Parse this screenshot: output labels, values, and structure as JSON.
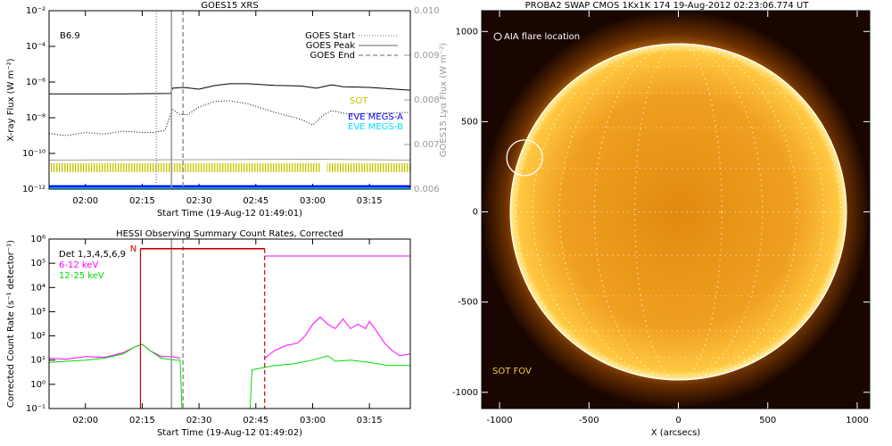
{
  "chart_data": [
    {
      "type": "line",
      "title": "GOES15 XRS",
      "xlabel": "Start Time (19-Aug-12 01:49:01)",
      "ylabel": "X-ray Flux (W m⁻²)",
      "y2label": "GOES15 Lyα Flux (W m⁻²)",
      "xlim": [
        110.4,
        205.8
      ],
      "xticks": [
        {
          "value": 120,
          "label": "02:00"
        },
        {
          "value": 135,
          "label": "02:15"
        },
        {
          "value": 150,
          "label": "02:30"
        },
        {
          "value": 165,
          "label": "02:45"
        },
        {
          "value": 180,
          "label": "03:00"
        },
        {
          "value": 195,
          "label": "03:15"
        }
      ],
      "ylim": [
        1e-12,
        0.01
      ],
      "log_y": true,
      "yticks": [
        {
          "value": 1e-12,
          "label": "10⁻¹²"
        },
        {
          "value": 1e-10,
          "label": "10⁻¹⁰"
        },
        {
          "value": 1e-08,
          "label": "10⁻⁸"
        },
        {
          "value": 1e-06,
          "label": "10⁻⁶"
        },
        {
          "value": 0.0001,
          "label": "10⁻⁴"
        },
        {
          "value": 0.01,
          "label": "10⁻²"
        }
      ],
      "y2lim": [
        0.006,
        0.01
      ],
      "y2ticks": [
        0.006,
        0.007,
        0.008,
        0.009,
        {
          "value": 0.01,
          "label": "0.010"
        }
      ],
      "flare_class": "B6.9",
      "sot_label": "SOT",
      "sot_color": "#c8c800",
      "sot_intervals": [
        [
          110.4,
          181.9
        ],
        [
          183.8,
          205.8
        ]
      ],
      "events": [
        {
          "label": "GOES Start",
          "x": 138.75,
          "style": "dotted"
        },
        {
          "label": "GOES Peak",
          "x": 142.73,
          "style": "solid"
        },
        {
          "label": "GOES End",
          "x": 145.78,
          "style": "dashed"
        }
      ],
      "series": [
        {
          "color": "#000000",
          "style": "solid",
          "x": [
            110.4,
            130,
            142.5,
            143,
            146,
            150,
            154,
            158,
            163,
            170,
            177,
            181,
            185,
            188,
            195,
            205.8
          ],
          "values": [
            2.2e-07,
            2.2e-07,
            2.3e-07,
            4.5e-07,
            5e-07,
            4e-07,
            6.3e-07,
            8e-07,
            8e-07,
            6.5e-07,
            6e-07,
            4.5e-07,
            7e-07,
            5.5e-07,
            5e-07,
            3.5e-07
          ]
        },
        {
          "color": "#000000",
          "style": "dotted",
          "x": [
            110.4,
            115,
            120,
            125,
            130,
            135,
            138,
            141,
            143,
            145,
            147,
            150,
            154,
            158,
            163,
            170,
            177,
            180,
            183,
            185,
            190,
            195,
            205.8
          ],
          "values": [
            1.3e-09,
            1e-09,
            1.5e-09,
            1.2e-09,
            1.8e-09,
            1.5e-09,
            1.5e-09,
            2e-09,
            3e-08,
            1.5e-08,
            1.5e-08,
            4e-08,
            8e-08,
            9e-08,
            6e-08,
            2e-08,
            8e-09,
            4e-09,
            1.5e-08,
            2.5e-08,
            1.5e-08,
            1.8e-08,
            2e-08
          ]
        },
        {
          "color": "#a0a0a0",
          "style": "solid",
          "axis": "y2",
          "x": [
            110.4,
            150,
            180,
            205.8
          ],
          "values": [
            0.00665,
            0.00666,
            0.00667,
            0.00665
          ]
        },
        {
          "name": "EVE MEGS-A",
          "color": "#0000ff",
          "style": "thick",
          "x": [
            110.4,
            205.8
          ],
          "values": [
            1.4e-12,
            1.4e-12
          ]
        },
        {
          "name": "EVE MEGS-B",
          "color": "#00e0ff",
          "style": "thick",
          "x": [
            110.4,
            205.8
          ],
          "values": [
            1.05e-12,
            1.05e-12
          ]
        }
      ]
    },
    {
      "type": "line",
      "title": "HESSI Observing Summary Count Rates, Corrected",
      "xlabel": "Start Time (19-Aug-12 01:49:02)",
      "ylabel": "Corrected Count Rate (s⁻¹ detector⁻¹)",
      "xlim": [
        110.4,
        205.8
      ],
      "xticks": [
        {
          "value": 120,
          "label": "02:00"
        },
        {
          "value": 135,
          "label": "02:15"
        },
        {
          "value": 150,
          "label": "02:30"
        },
        {
          "value": 165,
          "label": "02:45"
        },
        {
          "value": 180,
          "label": "03:00"
        },
        {
          "value": 195,
          "label": "03:15"
        }
      ],
      "ylim": [
        0.1,
        1000000
      ],
      "log_y": true,
      "yticks": [
        {
          "value": 0.1,
          "label": "10⁻¹"
        },
        {
          "value": 1,
          "label": "10⁰"
        },
        {
          "value": 10,
          "label": "10¹"
        },
        {
          "value": 100,
          "label": "10²"
        },
        {
          "value": 1000,
          "label": "10³"
        },
        {
          "value": 10000,
          "label": "10⁴"
        },
        {
          "value": 100000,
          "label": "10⁵"
        },
        {
          "value": 1000000,
          "label": "10⁶"
        }
      ],
      "legend_title": "Det 1,3,4,5,6,9",
      "events": [
        {
          "x": 142.73,
          "style": "solid"
        },
        {
          "x": 145.78,
          "style": "dashed"
        }
      ],
      "attenuator": {
        "label": "N",
        "color": "#cc0000",
        "start": 134.53,
        "end": 167.34,
        "level": 400000
      },
      "series": [
        {
          "name": "6-12 keV",
          "color": "#ff00ff",
          "style": "solid",
          "x": [
            110.4,
            115,
            120,
            125,
            130,
            133,
            135,
            137,
            140,
            143,
            145,
            163.6,
            167.3,
            170,
            173,
            176,
            178,
            180,
            182,
            184,
            186,
            188,
            190,
            192,
            194,
            195,
            197,
            199,
            201,
            203,
            205.8
          ],
          "values": [
            12,
            11,
            14,
            13,
            20,
            35,
            45,
            25,
            14,
            14,
            12,
            null,
            12,
            25,
            40,
            50,
            100,
            300,
            600,
            300,
            200,
            500,
            200,
            300,
            200,
            400,
            150,
            50,
            25,
            15,
            18
          ]
        },
        {
          "name": "12-25 keV",
          "color": "#00dd00",
          "style": "solid",
          "x": [
            110.4,
            115,
            120,
            125,
            130,
            133,
            135,
            137,
            140,
            144,
            145,
            145.5,
            163.5,
            164,
            167.3,
            170,
            175,
            180,
            184,
            186,
            190,
            195,
            200,
            205.8
          ],
          "values": [
            8,
            9,
            10,
            12,
            18,
            35,
            45,
            25,
            12,
            10,
            10,
            0.1,
            0.1,
            4,
            5,
            6,
            7,
            10,
            15,
            9,
            10,
            8,
            6,
            6
          ]
        },
        {
          "color": "#ff00ff",
          "style": "solid",
          "x": [
            167.34,
            205.8
          ],
          "values": [
            200000,
            200000
          ]
        }
      ]
    },
    {
      "type": "image",
      "title": "PROBA2 SWAP CMOS 1Kx1K 174 19-Aug-2012 02:23:06.774 UT",
      "xlabel": "X (arcsecs)",
      "xlim": [
        -1100,
        1070
      ],
      "ylim": [
        -1090,
        1115
      ],
      "xticks": [
        -1000,
        -500,
        0,
        500,
        1000
      ],
      "yticks": [
        -1000,
        -500,
        0,
        500,
        1000
      ],
      "markers": [
        {
          "label": "AIA flare location",
          "x": -860,
          "y": 300
        }
      ],
      "fov_label": "SOT FOV"
    }
  ]
}
